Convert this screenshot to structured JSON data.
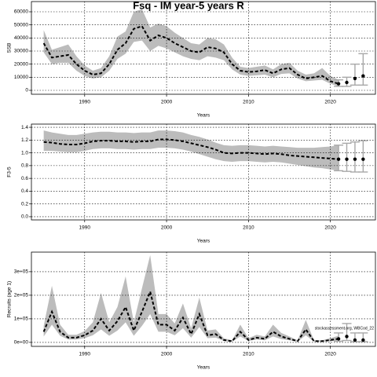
{
  "title": "Fsq - IM year-5 years R",
  "chart_data": [
    {
      "type": "line",
      "ylabel": "SSB",
      "xlabel": "Years",
      "x": [
        1985,
        1986,
        1987,
        1988,
        1989,
        1990,
        1991,
        1992,
        1993,
        1994,
        1995,
        1996,
        1997,
        1998,
        1999,
        2000,
        2001,
        2002,
        2003,
        2004,
        2005,
        2006,
        2007,
        2008,
        2009,
        2010,
        2011,
        2012,
        2013,
        2014,
        2015,
        2016,
        2017,
        2018,
        2019,
        2020,
        2021
      ],
      "values": [
        36000,
        25000,
        26000,
        27000,
        20000,
        15000,
        12000,
        13000,
        20000,
        31000,
        36000,
        47000,
        49000,
        38000,
        42000,
        40000,
        36000,
        33000,
        30000,
        29000,
        33000,
        32000,
        29000,
        20000,
        15000,
        14000,
        14500,
        15500,
        13000,
        16000,
        17000,
        12000,
        9000,
        10000,
        11000,
        7000,
        5000
      ],
      "lower": [
        29000,
        20000,
        21000,
        21000,
        15000,
        11000,
        9000,
        10000,
        15000,
        24000,
        28000,
        37000,
        38000,
        30000,
        34000,
        32000,
        29000,
        26000,
        24000,
        23000,
        26000,
        25000,
        23000,
        16000,
        12000,
        11000,
        11500,
        12000,
        10000,
        12500,
        13000,
        9000,
        7000,
        7500,
        8000,
        5000,
        3000
      ],
      "upper": [
        46000,
        31000,
        33000,
        35000,
        26000,
        19000,
        15000,
        17000,
        26000,
        41000,
        45000,
        60000,
        62000,
        48000,
        51000,
        49000,
        44000,
        40000,
        36000,
        35000,
        40000,
        39000,
        35000,
        25000,
        18000,
        17000,
        18000,
        19000,
        16000,
        20000,
        21000,
        15000,
        12000,
        13000,
        17000,
        11000,
        8000
      ],
      "forecast": {
        "x": [
          2021,
          2022,
          2023,
          2024
        ],
        "values": [
          5000,
          6000,
          9000,
          11000
        ],
        "lower": [
          3000,
          3000,
          4000,
          4000
        ],
        "upper": [
          8000,
          10000,
          20000,
          28000
        ]
      },
      "xlim": [
        1983.5,
        2025.5
      ],
      "xticks": [
        1990,
        2000,
        2010,
        2020
      ],
      "ylim": [
        -3000,
        67800
      ],
      "yticks": [
        0,
        10000,
        20000,
        30000,
        40000,
        50000,
        60000
      ],
      "grid": true,
      "color": "#000000",
      "band_color": "#bcbcbc",
      "error_color": "#a8a8a8"
    },
    {
      "type": "line",
      "ylabel": "F3-5",
      "xlabel": "Years",
      "x": [
        1985,
        1986,
        1987,
        1988,
        1989,
        1990,
        1991,
        1992,
        1993,
        1994,
        1995,
        1996,
        1997,
        1998,
        1999,
        2000,
        2001,
        2002,
        2003,
        2004,
        2005,
        2006,
        2007,
        2008,
        2009,
        2010,
        2011,
        2012,
        2013,
        2014,
        2015,
        2016,
        2017,
        2018,
        2019,
        2020,
        2021
      ],
      "values": [
        1.17,
        1.16,
        1.14,
        1.13,
        1.13,
        1.15,
        1.18,
        1.19,
        1.19,
        1.18,
        1.18,
        1.17,
        1.18,
        1.18,
        1.21,
        1.21,
        1.2,
        1.18,
        1.15,
        1.12,
        1.09,
        1.05,
        1.0,
        0.99,
        1.0,
        1.0,
        0.99,
        0.98,
        0.99,
        0.98,
        0.96,
        0.95,
        0.94,
        0.93,
        0.92,
        0.91,
        0.9
      ],
      "lower": [
        1.03,
        1.03,
        1.02,
        1.01,
        1.01,
        1.03,
        1.06,
        1.07,
        1.07,
        1.06,
        1.06,
        1.05,
        1.06,
        1.06,
        1.08,
        1.08,
        1.07,
        1.05,
        1.02,
        0.98,
        0.94,
        0.9,
        0.87,
        0.86,
        0.87,
        0.87,
        0.86,
        0.85,
        0.86,
        0.85,
        0.83,
        0.81,
        0.79,
        0.77,
        0.76,
        0.74,
        0.72
      ],
      "upper": [
        1.35,
        1.32,
        1.3,
        1.28,
        1.28,
        1.3,
        1.32,
        1.33,
        1.33,
        1.32,
        1.32,
        1.31,
        1.32,
        1.32,
        1.35,
        1.35,
        1.34,
        1.32,
        1.28,
        1.25,
        1.21,
        1.16,
        1.12,
        1.11,
        1.12,
        1.12,
        1.11,
        1.1,
        1.11,
        1.1,
        1.09,
        1.08,
        1.08,
        1.08,
        1.09,
        1.1,
        1.12
      ],
      "forecast": {
        "x": [
          2021,
          2022,
          2023,
          2024
        ],
        "values": [
          0.9,
          0.9,
          0.9,
          0.9
        ],
        "lower": [
          0.72,
          0.71,
          0.7,
          0.7
        ],
        "upper": [
          1.12,
          1.15,
          1.17,
          1.19
        ]
      },
      "xlim": [
        1983.5,
        2025.5
      ],
      "xticks": [
        1990,
        2000,
        2010,
        2020
      ],
      "ylim": [
        -0.05,
        1.45
      ],
      "yticks": [
        {
          "value": 0,
          "label": "0.0"
        },
        0.2,
        0.4,
        0.6,
        0.8,
        {
          "value": 1,
          "label": "1.0"
        },
        1.2,
        1.4
      ],
      "grid": true,
      "color": "#000000",
      "band_color": "#bcbcbc",
      "error_color": "#a8a8a8"
    },
    {
      "type": "line",
      "ylabel": "Recruits (age 1)",
      "xlabel": "Years",
      "annotation": "stockassessment.org, WBCod_22",
      "x": [
        1985,
        1986,
        1987,
        1988,
        1989,
        1990,
        1991,
        1992,
        1993,
        1994,
        1995,
        1996,
        1997,
        1998,
        1999,
        2000,
        2001,
        2002,
        2003,
        2004,
        2005,
        2006,
        2007,
        2008,
        2009,
        2010,
        2011,
        2012,
        2013,
        2014,
        2015,
        2016,
        2017,
        2018,
        2019,
        2020,
        2021
      ],
      "values": [
        45000,
        130000,
        45000,
        20000,
        20000,
        30000,
        50000,
        100000,
        50000,
        90000,
        150000,
        50000,
        130000,
        215000,
        75000,
        75000,
        50000,
        105000,
        35000,
        120000,
        30000,
        35000,
        10000,
        5000,
        45000,
        10000,
        20000,
        15000,
        45000,
        25000,
        15000,
        5000,
        55000,
        5000,
        5000,
        10000,
        15000
      ],
      "lower": [
        25000,
        75000,
        28000,
        12000,
        12000,
        18000,
        30000,
        55000,
        28000,
        50000,
        85000,
        28000,
        70000,
        120000,
        45000,
        45000,
        30000,
        60000,
        20000,
        65000,
        18000,
        20000,
        6000,
        3000,
        25000,
        6000,
        12000,
        9000,
        25000,
        14000,
        9000,
        3000,
        30000,
        3000,
        3000,
        5000,
        8000
      ],
      "upper": [
        70000,
        240000,
        75000,
        32000,
        32000,
        48000,
        85000,
        210000,
        85000,
        150000,
        280000,
        85000,
        230000,
        370000,
        120000,
        120000,
        80000,
        165000,
        60000,
        190000,
        50000,
        55000,
        17000,
        9000,
        75000,
        18000,
        32000,
        25000,
        75000,
        40000,
        25000,
        9000,
        95000,
        9000,
        9000,
        18000,
        28000
      ],
      "forecast": {
        "x": [
          2021,
          2022,
          2023,
          2024
        ],
        "values": [
          15000,
          25000,
          10000,
          10000
        ],
        "lower": [
          5000,
          8000,
          3000,
          3000
        ],
        "upper": [
          40000,
          80000,
          40000,
          40000
        ]
      },
      "xlim": [
        1983.5,
        2025.5
      ],
      "xticks": [
        1990,
        2000,
        2010,
        2020
      ],
      "ylim": [
        -17000,
        383000
      ],
      "yticks": [
        {
          "value": 0,
          "label": "0e+00"
        },
        {
          "value": 100000,
          "label": "1e+05"
        },
        {
          "value": 200000,
          "label": "2e+05"
        },
        {
          "value": 300000,
          "label": "3e+05"
        }
      ],
      "grid": true,
      "color": "#000000",
      "band_color": "#bcbcbc",
      "error_color": "#a8a8a8"
    }
  ]
}
